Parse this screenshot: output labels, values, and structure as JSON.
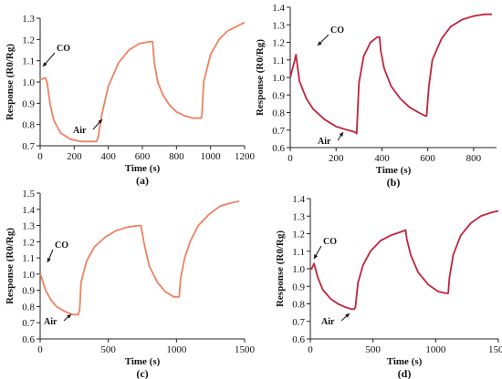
{
  "colors": {
    "panel_a": "#f08060",
    "panel_b": "#c0243c",
    "panel_c": "#f08060",
    "panel_d": "#c0243c"
  },
  "chart_data": [
    {
      "panel": "(a)",
      "type": "line",
      "xlabel": "Time (s)",
      "ylabel": "Response (R0/Rg)",
      "xlim": [
        0,
        1200
      ],
      "ylim": [
        0.7,
        1.3
      ],
      "xticks": [
        0,
        200,
        400,
        600,
        800,
        1000,
        1200
      ],
      "yticks": [
        0.7,
        0.8,
        0.9,
        1.0,
        1.1,
        1.2,
        1.3
      ],
      "series": [
        {
          "x": [
            0,
            30,
            40,
            60,
            80,
            120,
            180,
            240,
            300,
            330,
            340,
            360,
            400,
            460,
            520,
            580,
            640,
            660,
            670,
            690,
            720,
            760,
            800,
            850,
            900,
            945,
            950,
            960,
            1000,
            1050,
            1100,
            1150,
            1200
          ],
          "y": [
            1.01,
            1.02,
            1.0,
            0.89,
            0.82,
            0.76,
            0.73,
            0.72,
            0.72,
            0.72,
            0.74,
            0.84,
            0.98,
            1.09,
            1.15,
            1.18,
            1.19,
            1.19,
            1.09,
            1.0,
            0.94,
            0.89,
            0.86,
            0.84,
            0.83,
            0.83,
            0.85,
            1.0,
            1.13,
            1.2,
            1.24,
            1.26,
            1.28
          ]
        }
      ],
      "annotations": [
        {
          "text": "CO",
          "x": 30,
          "y": 1.02
        },
        {
          "text": "Air",
          "x": 330,
          "y": 0.72
        }
      ]
    },
    {
      "panel": "(b)",
      "type": "line",
      "xlabel": "Time (s)",
      "ylabel": "Response (R0/Rg)",
      "xlim": [
        0,
        900
      ],
      "ylim": [
        0.6,
        1.4
      ],
      "xticks": [
        0,
        200,
        400,
        600,
        800
      ],
      "yticks": [
        0.6,
        0.7,
        0.8,
        0.9,
        1.0,
        1.1,
        1.2,
        1.3,
        1.4
      ],
      "series": [
        {
          "x": [
            0,
            20,
            25,
            40,
            70,
            100,
            150,
            200,
            250,
            280,
            290,
            300,
            320,
            350,
            380,
            390,
            395,
            410,
            440,
            480,
            520,
            560,
            590,
            595,
            605,
            620,
            660,
            700,
            750,
            800,
            850,
            880
          ],
          "y": [
            1.0,
            1.1,
            1.13,
            0.98,
            0.88,
            0.82,
            0.76,
            0.72,
            0.7,
            0.69,
            0.68,
            0.97,
            1.12,
            1.2,
            1.23,
            1.23,
            1.15,
            1.05,
            0.95,
            0.88,
            0.83,
            0.8,
            0.78,
            0.78,
            0.95,
            1.1,
            1.22,
            1.29,
            1.33,
            1.35,
            1.36,
            1.36
          ]
        }
      ],
      "annotations": [
        {
          "text": "CO",
          "x": 25,
          "y": 1.13
        },
        {
          "text": "Air",
          "x": 290,
          "y": 0.68
        }
      ]
    },
    {
      "panel": "(c)",
      "type": "line",
      "xlabel": "Time (s)",
      "ylabel": "Response (R0/Rg)",
      "xlim": [
        0,
        1500
      ],
      "ylim": [
        0.6,
        1.5
      ],
      "xticks": [
        0,
        500,
        1000,
        1500
      ],
      "yticks": [
        0.6,
        0.7,
        0.8,
        0.9,
        1.0,
        1.1,
        1.2,
        1.3,
        1.4,
        1.5
      ],
      "series": [
        {
          "x": [
            0,
            10,
            40,
            80,
            120,
            180,
            240,
            280,
            290,
            300,
            340,
            400,
            480,
            560,
            640,
            720,
            740,
            760,
            800,
            860,
            920,
            980,
            1020,
            1030,
            1060,
            1100,
            1160,
            1240,
            1320,
            1400,
            1460
          ],
          "y": [
            1.0,
            0.98,
            0.9,
            0.84,
            0.8,
            0.77,
            0.75,
            0.75,
            0.78,
            0.95,
            1.08,
            1.17,
            1.23,
            1.27,
            1.29,
            1.3,
            1.3,
            1.2,
            1.05,
            0.95,
            0.89,
            0.86,
            0.86,
            0.97,
            1.1,
            1.2,
            1.3,
            1.37,
            1.42,
            1.44,
            1.45
          ]
        }
      ],
      "annotations": [
        {
          "text": "CO",
          "x": 30,
          "y": 1.08
        },
        {
          "text": "Air",
          "x": 280,
          "y": 0.75
        }
      ]
    },
    {
      "panel": "(d)",
      "type": "line",
      "xlabel": "Time (s)",
      "ylabel": "Response (R0/Rg)",
      "xlim": [
        0,
        1500
      ],
      "ylim": [
        0.6,
        1.4
      ],
      "xticks": [
        0,
        500,
        1000,
        1500
      ],
      "yticks": [
        0.6,
        0.7,
        0.8,
        0.9,
        1.0,
        1.1,
        1.2,
        1.3,
        1.4
      ],
      "series": [
        {
          "x": [
            0,
            10,
            30,
            60,
            100,
            160,
            220,
            280,
            330,
            350,
            360,
            380,
            420,
            480,
            560,
            640,
            720,
            760,
            770,
            800,
            860,
            940,
            1020,
            1080,
            1100,
            1110,
            1140,
            1200,
            1280,
            1360,
            1440,
            1500
          ],
          "y": [
            1.0,
            1.0,
            1.03,
            0.95,
            0.88,
            0.83,
            0.8,
            0.78,
            0.77,
            0.77,
            0.78,
            0.92,
            1.02,
            1.1,
            1.16,
            1.19,
            1.21,
            1.22,
            1.17,
            1.08,
            0.98,
            0.91,
            0.87,
            0.86,
            0.86,
            0.95,
            1.08,
            1.19,
            1.26,
            1.3,
            1.32,
            1.33
          ]
        }
      ],
      "annotations": [
        {
          "text": "CO",
          "x": 25,
          "y": 1.03
        },
        {
          "text": "Air",
          "x": 360,
          "y": 0.77
        }
      ]
    }
  ]
}
